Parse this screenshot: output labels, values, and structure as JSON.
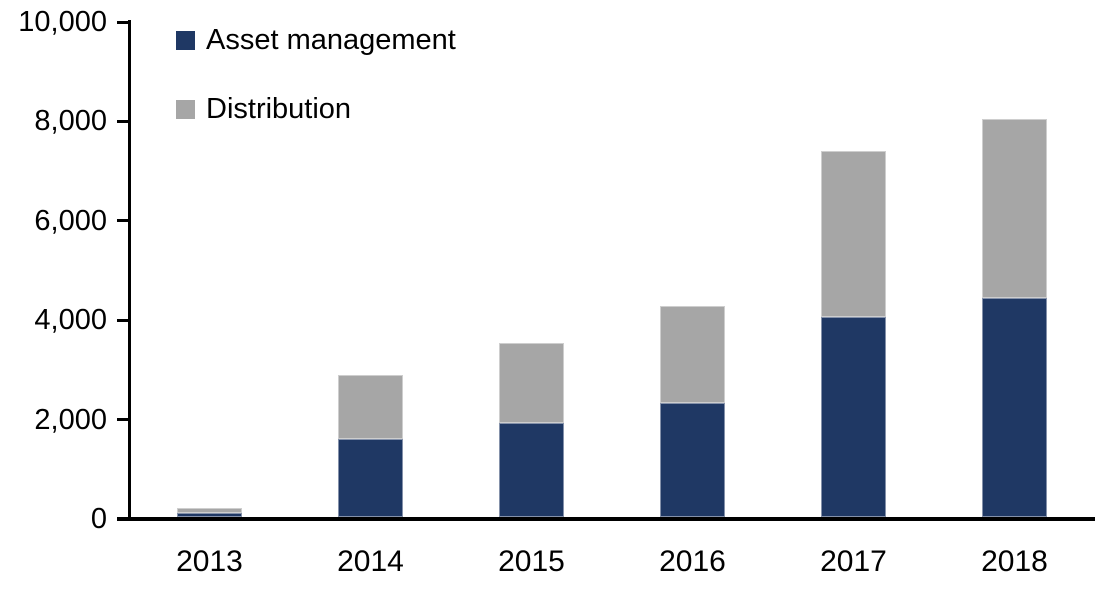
{
  "chart_data": {
    "type": "bar",
    "stacked": true,
    "categories": [
      "2013",
      "2014",
      "2015",
      "2016",
      "2017",
      "2018"
    ],
    "series": [
      {
        "name": "Asset management",
        "color": "#1f3864",
        "values": [
          80,
          1560,
          1890,
          2290,
          4030,
          4410
        ]
      },
      {
        "name": "Distribution",
        "color": "#a6a6a6",
        "values": [
          110,
          1300,
          1620,
          1950,
          3330,
          3590
        ]
      }
    ],
    "ylim": [
      0,
      10000
    ],
    "ytick_values": [
      0,
      2000,
      4000,
      6000,
      8000,
      10000
    ],
    "ytick_labels": [
      "0",
      "2,000",
      "4,000",
      "6,000",
      "8,000",
      "10,000"
    ],
    "xlabel": "",
    "ylabel": "",
    "grid": false,
    "legend_position": "top-left",
    "axis_color": "#000000",
    "background_color": "#ffffff"
  }
}
